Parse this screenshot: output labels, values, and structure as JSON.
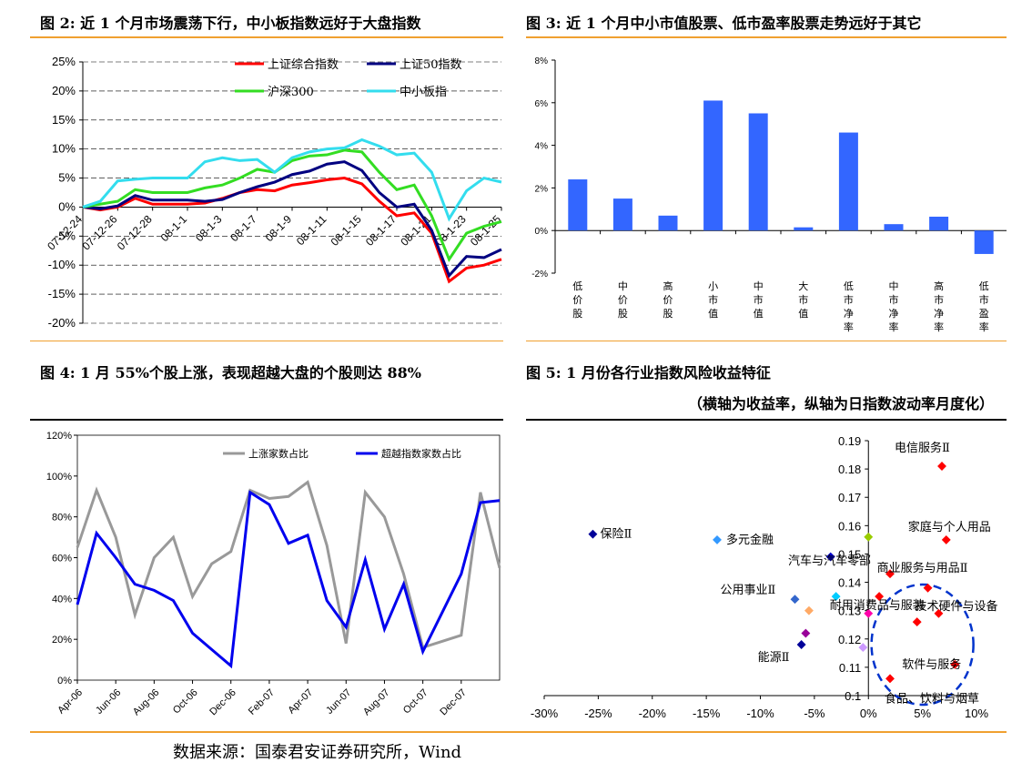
{
  "fig2_title": "图 2:   近 1 个月市场震荡下行，中小板指数远好于大盘指数",
  "fig3_title": "图 3:   近 1 个月中小市值股票、低市盈率股票走势远好于其它",
  "fig4_title": "图 4:   1 月 55%个股上涨，表现超越大盘的个股则达 88%",
  "fig5_title": "图 5:   1 月份各行业指数风险收益特征",
  "fig5_subtitle": "（横轴为收益率，纵轴为日指数波动率月度化）",
  "source": "数据来源：国泰君安证券研究所，Wind",
  "chart_data": [
    {
      "id": "fig2",
      "type": "line",
      "ylim": [
        -0.2,
        0.25
      ],
      "yticks": [
        "25%",
        "20%",
        "15%",
        "10%",
        "5%",
        "0%",
        "-5%",
        "-10%",
        "-15%",
        "-20%"
      ],
      "xticks": [
        "07-12-24",
        "07-12-26",
        "07-12-28",
        "08-1-1",
        "08-1-3",
        "08-1-7",
        "08-1-9",
        "08-1-11",
        "08-1-15",
        "08-1-17",
        "08-1-21",
        "08-1-23",
        "08-1-25"
      ],
      "n_points": 25,
      "series": [
        {
          "name": "上证综合指数",
          "color": "#ff0000",
          "values": [
            0,
            -0.005,
            0,
            0.015,
            0.005,
            0.005,
            0.005,
            0.007,
            0.015,
            0.025,
            0.03,
            0.028,
            0.038,
            0.042,
            0.047,
            0.05,
            0.04,
            0.01,
            -0.015,
            -0.01,
            -0.045,
            -0.128,
            -0.105,
            -0.1,
            -0.09
          ]
        },
        {
          "name": "上证50指数",
          "color": "#000080",
          "values": [
            0,
            -0.003,
            0.002,
            0.02,
            0.012,
            0.012,
            0.012,
            0.01,
            0.013,
            0.025,
            0.035,
            0.043,
            0.056,
            0.062,
            0.074,
            0.078,
            0.063,
            0.025,
            0,
            0.005,
            -0.04,
            -0.118,
            -0.085,
            -0.087,
            -0.073
          ]
        },
        {
          "name": "沪深300",
          "color": "#33dd22",
          "values": [
            0,
            0.005,
            0.01,
            0.03,
            0.025,
            0.025,
            0.025,
            0.033,
            0.038,
            0.05,
            0.065,
            0.06,
            0.08,
            0.088,
            0.09,
            0.098,
            0.095,
            0.06,
            0.03,
            0.038,
            -0.015,
            -0.09,
            -0.045,
            -0.033,
            -0.025
          ]
        },
        {
          "name": "中小板指",
          "color": "#33ddee",
          "values": [
            0,
            0.01,
            0.045,
            0.048,
            0.05,
            0.05,
            0.05,
            0.078,
            0.085,
            0.08,
            0.082,
            0.06,
            0.085,
            0.095,
            0.1,
            0.102,
            0.116,
            0.105,
            0.09,
            0.093,
            0.06,
            -0.02,
            0.028,
            0.05,
            0.043
          ]
        }
      ]
    },
    {
      "id": "fig3",
      "type": "bar",
      "ylim": [
        -0.02,
        0.08
      ],
      "yticks": [
        "8%",
        "6%",
        "4%",
        "2%",
        "0%",
        "-2%"
      ],
      "categories": [
        "低价股",
        "中价股",
        "高价股",
        "小市值",
        "中市值",
        "大市值",
        "低市净率",
        "中市净率",
        "高市净率",
        "低市盈率"
      ],
      "values": [
        0.024,
        0.015,
        0.007,
        0.061,
        0.055,
        0.0015,
        0.046,
        0.003,
        0.0065,
        -0.011
      ],
      "color": "#3366ff"
    },
    {
      "id": "fig4",
      "type": "line",
      "ylim": [
        0,
        1.2
      ],
      "yticks": [
        "120%",
        "100%",
        "80%",
        "60%",
        "40%",
        "20%",
        "0%"
      ],
      "xticks": [
        "Apr-06",
        "Jun-06",
        "Aug-06",
        "Oct-06",
        "Dec-06",
        "Feb-07",
        "Apr-07",
        "Jun-07",
        "Aug-07",
        "Oct-07",
        "Dec-07"
      ],
      "n_points": 23,
      "series": [
        {
          "name": "上涨家数占比",
          "color": "#999999",
          "values": [
            0.65,
            0.93,
            0.7,
            0.32,
            0.6,
            0.7,
            0.41,
            0.57,
            0.63,
            0.93,
            0.89,
            0.9,
            0.97,
            0.66,
            0.18,
            0.92,
            0.8,
            0.52,
            0.16,
            0.19,
            0.22,
            0.92,
            0.55
          ]
        },
        {
          "name": "超越指数家数占比",
          "color": "#0000ee",
          "values": [
            0.37,
            0.72,
            0.6,
            0.47,
            0.44,
            0.39,
            0.23,
            0.15,
            0.07,
            0.92,
            0.86,
            0.67,
            0.71,
            0.39,
            0.26,
            0.59,
            0.25,
            0.47,
            0.14,
            0.33,
            0.52,
            0.87,
            0.88
          ]
        }
      ]
    },
    {
      "id": "fig5",
      "type": "scatter",
      "xlim": [
        -0.3,
        0.1
      ],
      "ylim": [
        0.1,
        0.19
      ],
      "xticks": [
        "-30%",
        "-25%",
        "-20%",
        "-15%",
        "-10%",
        "-5%",
        "0%",
        "5%",
        "10%"
      ],
      "yticks": [
        "0.19",
        "0.18",
        "0.17",
        "0.16",
        "0.15",
        "0.14",
        "0.13",
        "0.12",
        "0.11",
        "0.1"
      ],
      "points": [
        {
          "x": 0.068,
          "y": 0.181,
          "color": "#ff0000",
          "label": "电信服务Ⅱ"
        },
        {
          "x": -0.255,
          "y": 0.157,
          "color": "#000099",
          "label": "保险Ⅱ"
        },
        {
          "x": -0.14,
          "y": 0.155,
          "color": "#3399ff",
          "label": "多元金融"
        },
        {
          "x": 0.072,
          "y": 0.155,
          "color": "#ff0000",
          "label": "家庭与个人用品"
        },
        {
          "x": 0.0,
          "y": 0.156,
          "color": "#99cc00",
          "label": ""
        },
        {
          "x": -0.035,
          "y": 0.149,
          "color": "#0000cc",
          "label": ""
        },
        {
          "x": 0.02,
          "y": 0.143,
          "color": "#ff0000",
          "label": "汽车与汽车零部"
        },
        {
          "x": 0.055,
          "y": 0.138,
          "color": "#ff0000",
          "label": "商业服务与用品Ⅱ"
        },
        {
          "x": 0.01,
          "y": 0.135,
          "color": "#ff0000",
          "label": ""
        },
        {
          "x": -0.068,
          "y": 0.134,
          "color": "#3366cc",
          "label": "公用事业Ⅱ"
        },
        {
          "x": -0.055,
          "y": 0.13,
          "color": "#ffaa66",
          "label": ""
        },
        {
          "x": -0.03,
          "y": 0.135,
          "color": "#00ccff",
          "label": ""
        },
        {
          "x": 0.0,
          "y": 0.129,
          "color": "#ff00aa",
          "label": ""
        },
        {
          "x": 0.065,
          "y": 0.129,
          "color": "#ff0000",
          "label": "技术硬件与设备"
        },
        {
          "x": 0.045,
          "y": 0.126,
          "color": "#ff0000",
          "label": "耐用消费品与服装"
        },
        {
          "x": -0.058,
          "y": 0.122,
          "color": "#990099",
          "label": ""
        },
        {
          "x": -0.062,
          "y": 0.118,
          "color": "#000099",
          "label": "能源Ⅱ"
        },
        {
          "x": -0.005,
          "y": 0.117,
          "color": "#cc99ff",
          "label": ""
        },
        {
          "x": 0.08,
          "y": 0.111,
          "color": "#ff0000",
          "label": "软件与服务"
        },
        {
          "x": 0.02,
          "y": 0.106,
          "color": "#ff0000",
          "label": "食品、饮料与烟草"
        }
      ]
    }
  ],
  "legend_fig2": [
    "上证综合指数",
    "上证50指数",
    "沪深300",
    "中小板指"
  ],
  "legend_fig4": [
    "上涨家数占比",
    "超越指数家数占比"
  ]
}
